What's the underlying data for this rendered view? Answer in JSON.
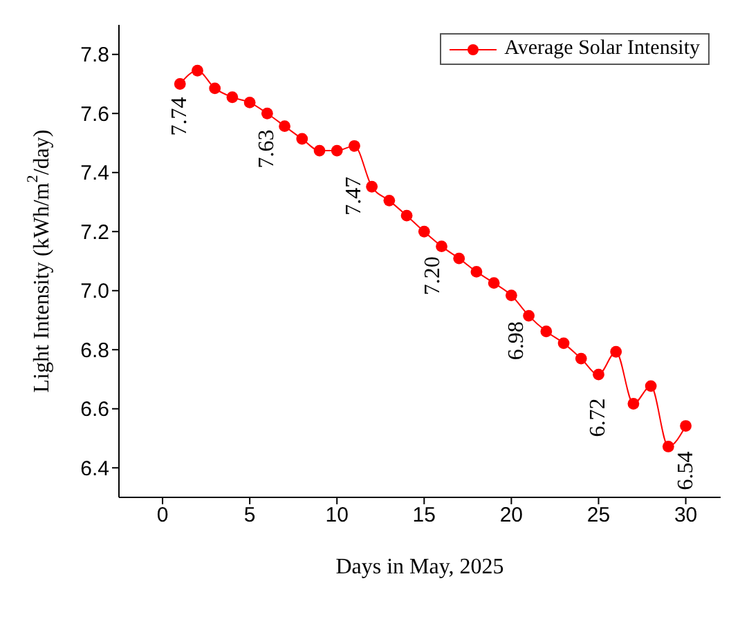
{
  "chart_data": {
    "type": "line",
    "xlabel": "Days in May, 2025",
    "ylabel": "Light Intensity (kWh/m$^{2}$/day)",
    "x": [
      1,
      2,
      3,
      4,
      5,
      6,
      7,
      8,
      9,
      10,
      11,
      12,
      13,
      14,
      15,
      16,
      17,
      18,
      19,
      20,
      21,
      22,
      23,
      24,
      25,
      26,
      27,
      28,
      29,
      30
    ],
    "series": [
      {
        "name": "Average Solar Intensity",
        "color": "#ff0000",
        "values": [
          7.7,
          7.745,
          7.685,
          7.655,
          7.637,
          7.6,
          7.557,
          7.514,
          7.474,
          7.474,
          7.49,
          7.352,
          7.305,
          7.254,
          7.2,
          7.15,
          7.109,
          7.064,
          7.026,
          6.984,
          6.915,
          6.862,
          6.822,
          6.77,
          6.716,
          6.793,
          6.617,
          6.677,
          6.472,
          6.542
        ]
      }
    ],
    "xlim": [
      -2.5,
      32
    ],
    "xticks": [
      0,
      5,
      10,
      15,
      20,
      25,
      30
    ],
    "ylim": [
      6.3,
      7.9
    ],
    "yticks": [
      6.4,
      6.6,
      6.8,
      {
        "value": 7,
        "label": "7.0"
      },
      7.2,
      7.4,
      7.6,
      7.8
    ],
    "annotations": [
      {
        "text": "7.74",
        "x": 1,
        "y": 7.74
      },
      {
        "text": "7.63",
        "x": 6,
        "y": 7.63
      },
      {
        "text": "7.47",
        "x": 11,
        "y": 7.47
      },
      {
        "text": "7.20",
        "x": 15.5,
        "y": 7.2
      },
      {
        "text": "6.98",
        "x": 20.3,
        "y": 6.98
      },
      {
        "text": "6.72",
        "x": 25,
        "y": 6.72
      },
      {
        "text": "6.54",
        "x": 30,
        "y": 6.54
      }
    ],
    "grid": false,
    "legend": "top right",
    "marker": "circle",
    "line_style": "solid"
  }
}
